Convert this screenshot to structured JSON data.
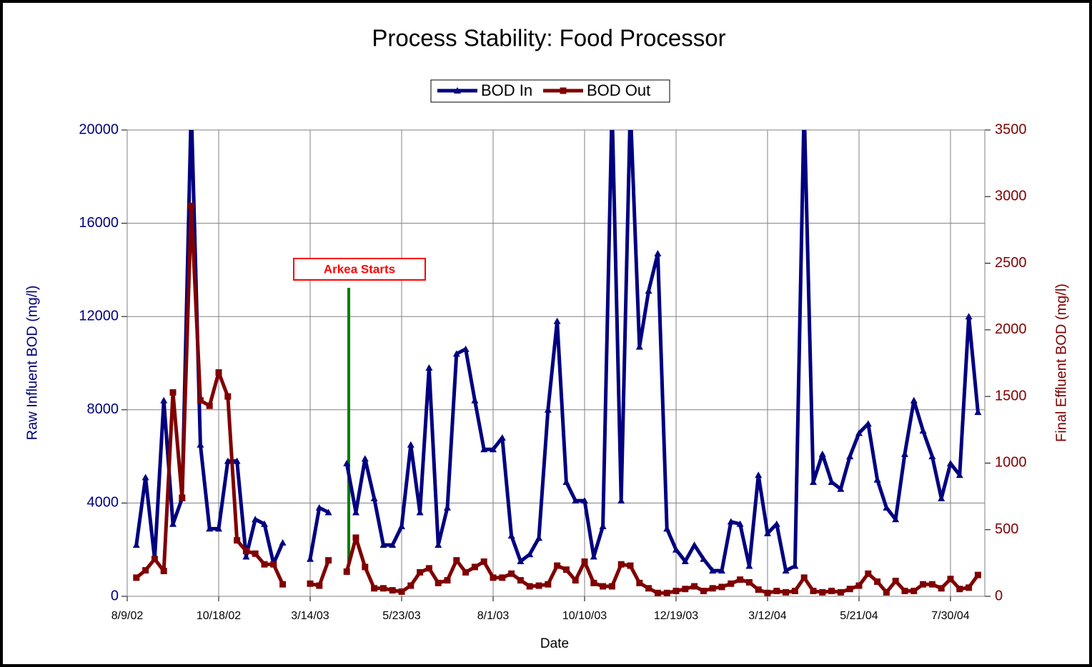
{
  "chart_data": {
    "type": "line",
    "title": "Process Stability: Food Processor",
    "xlabel": "Date",
    "ylabel": "Raw Influent BOD (mg/l)",
    "y2label": "Final Effluent BOD (mg/l)",
    "annotation": "Arkea Starts",
    "categories": [
      "8/9/02",
      null,
      null,
      null,
      null,
      null,
      null,
      null,
      null,
      null,
      "10/18/02",
      null,
      null,
      null,
      null,
      null,
      null,
      null,
      null,
      null,
      "3/14/03",
      null,
      null,
      null,
      null,
      null,
      null,
      null,
      null,
      null,
      "5/23/03",
      null,
      null,
      null,
      null,
      null,
      null,
      null,
      null,
      null,
      "8/1/03",
      null,
      null,
      null,
      null,
      null,
      null,
      null,
      null,
      null,
      "10/10/03",
      null,
      null,
      null,
      null,
      null,
      null,
      null,
      null,
      null,
      "12/19/03",
      null,
      null,
      null,
      null,
      null,
      null,
      null,
      null,
      null,
      "3/12/04",
      null,
      null,
      null,
      null,
      null,
      null,
      null,
      null,
      null,
      "5/21/04",
      null,
      null,
      null,
      null,
      null,
      null,
      null,
      null,
      null,
      "7/30/04",
      null,
      null,
      null
    ],
    "series": [
      {
        "name": "BOD In",
        "color": "#000080",
        "marker": "triangle",
        "values": [
          null,
          2200,
          5100,
          1600,
          8400,
          3100,
          4200,
          21000,
          6500,
          2900,
          2900,
          5800,
          5800,
          1700,
          3300,
          3100,
          1400,
          2300,
          null,
          null,
          1600,
          3800,
          3600,
          null,
          5700,
          3600,
          5900,
          4200,
          2200,
          2200,
          3000,
          6500,
          3600,
          9800,
          2200,
          3800,
          10400,
          10600,
          8400,
          6300,
          6300,
          6800,
          2600,
          1500,
          1800,
          2500,
          8000,
          11800,
          4900,
          4100,
          4100,
          1700,
          3000,
          21000,
          4100,
          21000,
          10700,
          13100,
          14700,
          2900,
          2000,
          1500,
          2200,
          1600,
          1100,
          1100,
          3200,
          3100,
          1300,
          5200,
          2700,
          3100,
          1100,
          1300,
          21000,
          4900,
          6100,
          4900,
          4600,
          6000,
          7000,
          7400,
          5000,
          3800,
          3300,
          6100,
          8400,
          7100,
          6000,
          4200,
          5700,
          5200,
          12000,
          7900
        ]
      },
      {
        "name": "BOD Out",
        "color": "#800000",
        "marker": "square",
        "axis": "y2",
        "values": [
          null,
          140,
          195,
          280,
          190,
          1530,
          740,
          2930,
          1470,
          1430,
          1680,
          1500,
          420,
          340,
          320,
          240,
          240,
          90,
          null,
          null,
          95,
          80,
          270,
          null,
          185,
          440,
          220,
          60,
          60,
          45,
          35,
          80,
          180,
          210,
          100,
          120,
          270,
          180,
          220,
          260,
          140,
          140,
          170,
          120,
          75,
          80,
          90,
          230,
          200,
          120,
          260,
          100,
          75,
          75,
          240,
          230,
          100,
          60,
          25,
          25,
          40,
          55,
          75,
          40,
          60,
          70,
          95,
          125,
          105,
          50,
          25,
          40,
          30,
          40,
          140,
          40,
          30,
          40,
          30,
          55,
          80,
          170,
          110,
          30,
          115,
          40,
          40,
          90,
          90,
          60,
          130,
          55,
          65,
          160
        ]
      }
    ],
    "ylim": [
      0,
      20000
    ],
    "yticks": [
      0,
      4000,
      8000,
      12000,
      16000,
      20000
    ],
    "y2lim": [
      0,
      3500
    ],
    "y2ticks": [
      0,
      500,
      1000,
      1500,
      2000,
      2500,
      3000,
      3500
    ],
    "grid": true,
    "legend": "top"
  }
}
